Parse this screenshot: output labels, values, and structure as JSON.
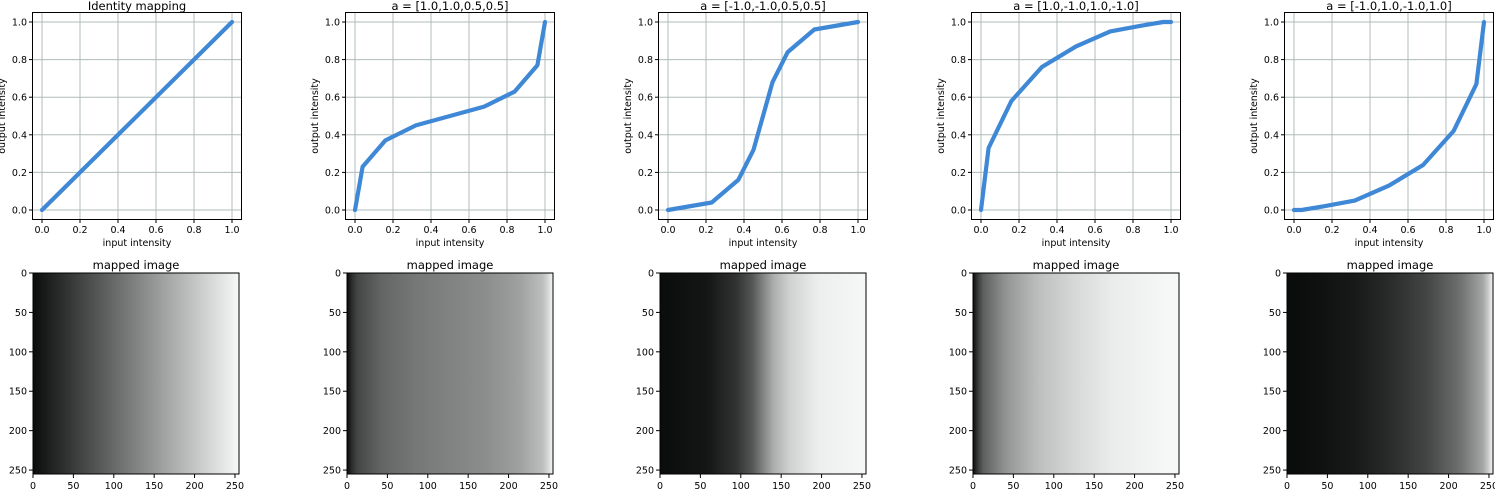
{
  "colors": {
    "line": "#3f88d6",
    "grid": "#b0bcbc",
    "dark": "#0b0c0c",
    "light": "#f6f8f8",
    "mid_tint": "#8b9699"
  },
  "chart_data": [
    {
      "type": "line",
      "title": "Identity mapping",
      "xlabel": "input intensity",
      "ylabel": "output intensity",
      "xlim": [
        0,
        1
      ],
      "ylim": [
        0,
        1
      ],
      "grid": true,
      "xticks": [
        "0.0",
        "0.2",
        "0.4",
        "0.6",
        "0.8",
        "1.0"
      ],
      "yticks": [
        "0.0",
        "0.2",
        "0.4",
        "0.6",
        "0.8",
        "1.0"
      ],
      "x": [
        0.0,
        1.0
      ],
      "y": [
        0.0,
        1.0
      ]
    },
    {
      "type": "line",
      "title": "a = [1.0,1.0,0.5,0.5]",
      "xlabel": "input intensity",
      "ylabel": "output intensity",
      "xlim": [
        0,
        1
      ],
      "ylim": [
        0,
        1
      ],
      "grid": true,
      "xticks": [
        "0.0",
        "0.2",
        "0.4",
        "0.6",
        "0.8",
        "1.0"
      ],
      "yticks": [
        "0.0",
        "0.2",
        "0.4",
        "0.6",
        "0.8",
        "1.0"
      ],
      "x": [
        0.0,
        0.04,
        0.16,
        0.32,
        0.5,
        0.68,
        0.84,
        0.96,
        1.0
      ],
      "y": [
        0.0,
        0.23,
        0.37,
        0.45,
        0.5,
        0.55,
        0.63,
        0.77,
        1.0
      ]
    },
    {
      "type": "line",
      "title": "a = [-1.0,-1.0,0.5,0.5]",
      "xlabel": "input intensity",
      "ylabel": "output intensity",
      "xlim": [
        0,
        1
      ],
      "ylim": [
        0,
        1
      ],
      "grid": true,
      "xticks": [
        "0.0",
        "0.2",
        "0.4",
        "0.6",
        "0.8",
        "1.0"
      ],
      "yticks": [
        "0.0",
        "0.2",
        "0.4",
        "0.6",
        "0.8",
        "1.0"
      ],
      "x": [
        0.0,
        0.23,
        0.37,
        0.45,
        0.5,
        0.55,
        0.63,
        0.77,
        1.0
      ],
      "y": [
        0.0,
        0.04,
        0.16,
        0.32,
        0.5,
        0.68,
        0.84,
        0.96,
        1.0
      ]
    },
    {
      "type": "line",
      "title": "a = [1.0,-1.0,1.0,-1.0]",
      "xlabel": "input intensity",
      "ylabel": "output intensity",
      "xlim": [
        0,
        1
      ],
      "ylim": [
        0,
        1
      ],
      "grid": true,
      "xticks": [
        "0.0",
        "0.2",
        "0.4",
        "0.6",
        "0.8",
        "1.0"
      ],
      "yticks": [
        "0.0",
        "0.2",
        "0.4",
        "0.6",
        "0.8",
        "1.0"
      ],
      "x": [
        0.0,
        0.04,
        0.16,
        0.32,
        0.5,
        0.68,
        0.84,
        0.96,
        1.0
      ],
      "y": [
        0.0,
        0.33,
        0.58,
        0.76,
        0.87,
        0.95,
        0.98,
        1.0,
        1.0
      ]
    },
    {
      "type": "line",
      "title": "a = [-1.0,1.0,-1.0,1.0]",
      "xlabel": "input intensity",
      "ylabel": "output intensity",
      "xlim": [
        0,
        1
      ],
      "ylim": [
        0,
        1
      ],
      "grid": true,
      "xticks": [
        "0.0",
        "0.2",
        "0.4",
        "0.6",
        "0.8",
        "1.0"
      ],
      "yticks": [
        "0.0",
        "0.2",
        "0.4",
        "0.6",
        "0.8",
        "1.0"
      ],
      "x": [
        0.0,
        0.04,
        0.16,
        0.32,
        0.5,
        0.68,
        0.84,
        0.96,
        1.0
      ],
      "y": [
        0.0,
        0.0,
        0.02,
        0.05,
        0.13,
        0.24,
        0.42,
        0.67,
        1.0
      ]
    },
    {
      "type": "heatmap",
      "title": "mapped image",
      "xticks": [
        "0",
        "50",
        "100",
        "150",
        "200",
        "250"
      ],
      "yticks": [
        "0",
        "50",
        "100",
        "150",
        "200",
        "250"
      ],
      "xlim": [
        0,
        255
      ],
      "ylim": [
        255,
        0
      ],
      "colormap": "grayscale, left to right per curve 1"
    },
    {
      "type": "heatmap",
      "title": "mapped image",
      "xticks": [
        "0",
        "50",
        "100",
        "150",
        "200",
        "250"
      ],
      "yticks": [
        "0",
        "50",
        "100",
        "150",
        "200",
        "250"
      ],
      "xlim": [
        0,
        255
      ],
      "ylim": [
        255,
        0
      ],
      "colormap": "grayscale, left to right per curve 2"
    },
    {
      "type": "heatmap",
      "title": "mapped image",
      "xticks": [
        "0",
        "50",
        "100",
        "150",
        "200",
        "250"
      ],
      "yticks": [
        "0",
        "50",
        "100",
        "150",
        "200",
        "250"
      ],
      "xlim": [
        0,
        255
      ],
      "ylim": [
        255,
        0
      ],
      "colormap": "grayscale, left to right per curve 3"
    },
    {
      "type": "heatmap",
      "title": "mapped image",
      "xticks": [
        "0",
        "50",
        "100",
        "150",
        "200",
        "250"
      ],
      "yticks": [
        "0",
        "50",
        "100",
        "150",
        "200",
        "250"
      ],
      "xlim": [
        0,
        255
      ],
      "ylim": [
        255,
        0
      ],
      "colormap": "grayscale, left to right per curve 4"
    },
    {
      "type": "heatmap",
      "title": "mapped image",
      "xticks": [
        "0",
        "50",
        "100",
        "150",
        "200",
        "250"
      ],
      "yticks": [
        "0",
        "50",
        "100",
        "150",
        "200",
        "250"
      ],
      "xlim": [
        0,
        255
      ],
      "ylim": [
        255,
        0
      ],
      "colormap": "grayscale, left to right per curve 5"
    }
  ]
}
